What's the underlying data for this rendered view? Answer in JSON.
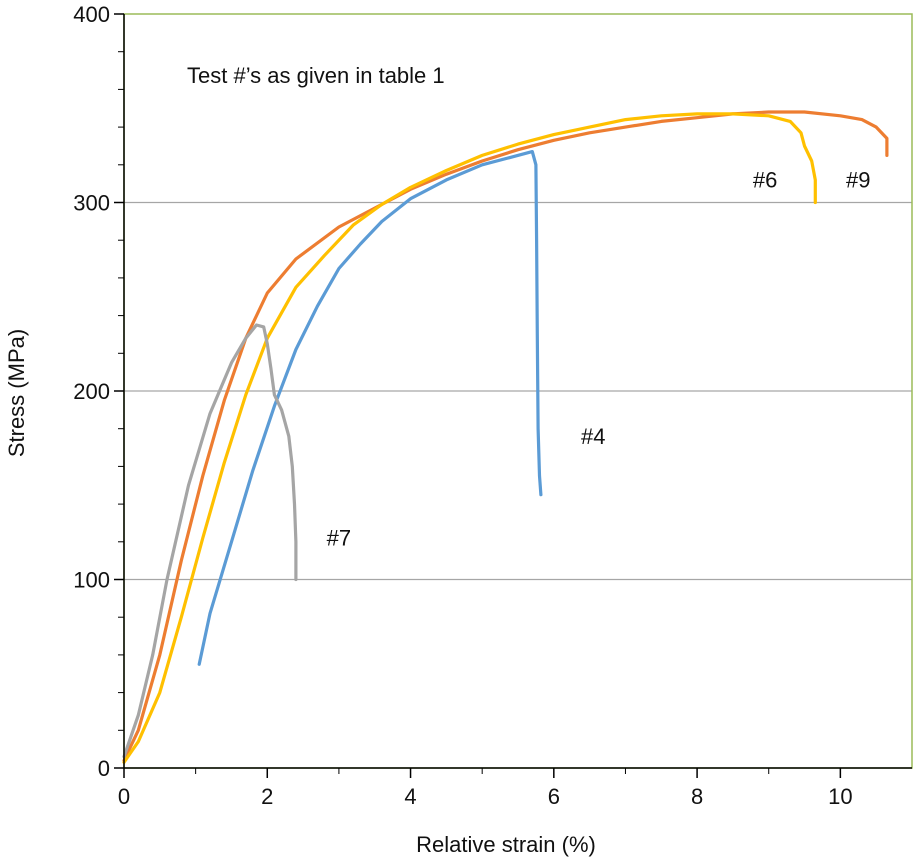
{
  "chart_data": {
    "type": "line",
    "xlabel": "Relative strain (%)",
    "ylabel": "Stress (MPa)",
    "xlim": [
      0,
      11
    ],
    "ylim": [
      0,
      400
    ],
    "x_ticks": [
      "0",
      "2",
      "4",
      "6",
      "8",
      "10"
    ],
    "y_ticks": [
      "0",
      "100",
      "200",
      "300",
      "400"
    ],
    "grid": "horizontal",
    "annotation": "Test #’s as given in table 1",
    "colors": {
      "#4": "#5b9bd5",
      "#6": "#ffc000",
      "#7": "#a5a5a5",
      "#9": "#ed7d31",
      "axis": "#000000",
      "plot_border": "#9bbb59",
      "grid": "#a6a6a6"
    },
    "series_labels": [
      {
        "text": "#4",
        "x": 6.55,
        "y": 172
      },
      {
        "text": "#6",
        "x": 8.95,
        "y": 308
      },
      {
        "text": "#7",
        "x": 3.0,
        "y": 118
      },
      {
        "text": "#9",
        "x": 10.25,
        "y": 308
      }
    ],
    "series": [
      {
        "key": "#9",
        "color": "#ed7d31",
        "points": [
          [
            0,
            4
          ],
          [
            0.2,
            20
          ],
          [
            0.5,
            60
          ],
          [
            0.8,
            110
          ],
          [
            1.1,
            155
          ],
          [
            1.4,
            195
          ],
          [
            1.7,
            228
          ],
          [
            2.0,
            252
          ],
          [
            2.4,
            270
          ],
          [
            3.0,
            287
          ],
          [
            3.5,
            297
          ],
          [
            4.0,
            307
          ],
          [
            4.5,
            315
          ],
          [
            5.0,
            322
          ],
          [
            5.5,
            328
          ],
          [
            6.0,
            333
          ],
          [
            6.5,
            337
          ],
          [
            7.0,
            340
          ],
          [
            7.5,
            343
          ],
          [
            8.0,
            345
          ],
          [
            8.5,
            347
          ],
          [
            9.0,
            348
          ],
          [
            9.5,
            348
          ],
          [
            10.0,
            346
          ],
          [
            10.3,
            344
          ],
          [
            10.5,
            340
          ],
          [
            10.65,
            334
          ],
          [
            10.65,
            325
          ]
        ]
      },
      {
        "key": "#6",
        "color": "#ffc000",
        "points": [
          [
            0,
            3
          ],
          [
            0.2,
            14
          ],
          [
            0.5,
            40
          ],
          [
            0.8,
            80
          ],
          [
            1.1,
            122
          ],
          [
            1.4,
            162
          ],
          [
            1.7,
            198
          ],
          [
            2.0,
            228
          ],
          [
            2.4,
            255
          ],
          [
            2.8,
            272
          ],
          [
            3.2,
            288
          ],
          [
            3.6,
            299
          ],
          [
            4.0,
            308
          ],
          [
            4.5,
            317
          ],
          [
            5.0,
            325
          ],
          [
            5.5,
            331
          ],
          [
            6.0,
            336
          ],
          [
            6.5,
            340
          ],
          [
            7.0,
            344
          ],
          [
            7.5,
            346
          ],
          [
            8.0,
            347
          ],
          [
            8.5,
            347
          ],
          [
            9.0,
            346
          ],
          [
            9.3,
            343
          ],
          [
            9.45,
            337
          ],
          [
            9.5,
            330
          ],
          [
            9.6,
            322
          ],
          [
            9.65,
            312
          ],
          [
            9.65,
            300
          ]
        ]
      },
      {
        "key": "#4",
        "color": "#5b9bd5",
        "points": [
          [
            1.05,
            55
          ],
          [
            1.2,
            82
          ],
          [
            1.5,
            120
          ],
          [
            1.8,
            158
          ],
          [
            2.1,
            192
          ],
          [
            2.4,
            222
          ],
          [
            2.7,
            245
          ],
          [
            3.0,
            265
          ],
          [
            3.3,
            278
          ],
          [
            3.6,
            290
          ],
          [
            4.0,
            302
          ],
          [
            4.5,
            312
          ],
          [
            5.0,
            320
          ],
          [
            5.4,
            324
          ],
          [
            5.7,
            327
          ],
          [
            5.75,
            320
          ],
          [
            5.76,
            280
          ],
          [
            5.77,
            230
          ],
          [
            5.78,
            180
          ],
          [
            5.8,
            155
          ],
          [
            5.82,
            145
          ]
        ]
      },
      {
        "key": "#7",
        "color": "#a5a5a5",
        "points": [
          [
            0,
            6
          ],
          [
            0.2,
            28
          ],
          [
            0.4,
            60
          ],
          [
            0.6,
            100
          ],
          [
            0.9,
            150
          ],
          [
            1.2,
            188
          ],
          [
            1.5,
            215
          ],
          [
            1.7,
            228
          ],
          [
            1.85,
            235
          ],
          [
            1.95,
            234
          ],
          [
            2.0,
            225
          ],
          [
            2.05,
            212
          ],
          [
            2.1,
            198
          ],
          [
            2.2,
            190
          ],
          [
            2.3,
            176
          ],
          [
            2.35,
            160
          ],
          [
            2.38,
            140
          ],
          [
            2.4,
            120
          ],
          [
            2.4,
            100
          ]
        ]
      }
    ]
  }
}
